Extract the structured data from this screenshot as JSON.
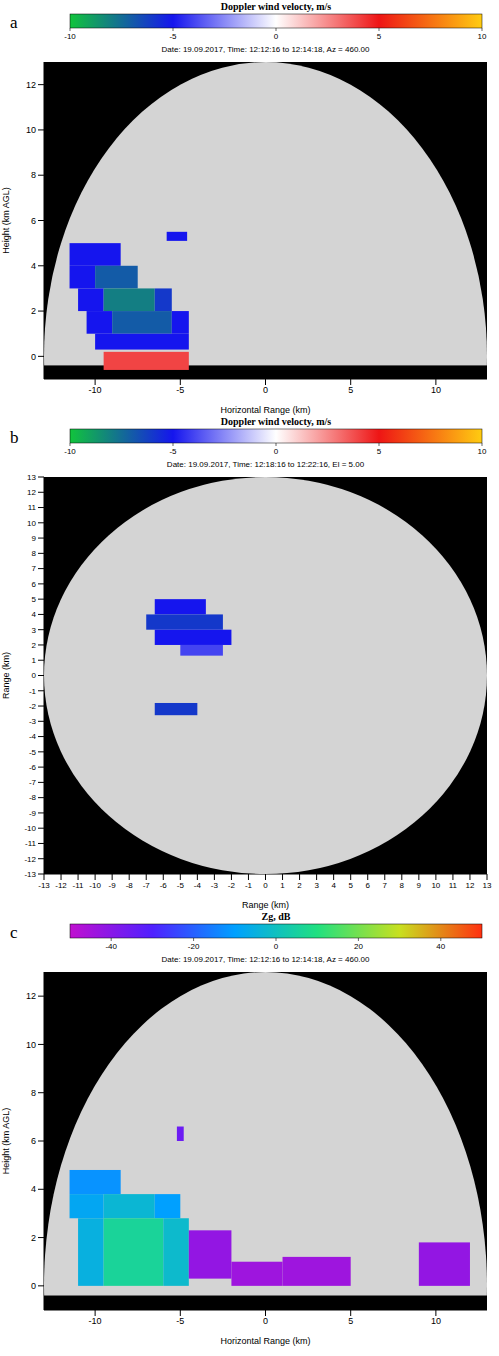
{
  "chart_data": [
    {
      "panel": "a",
      "type": "rhi",
      "title": "Date: 19.09.2017, Time: 12:12:16 to 12:14:18, Az = 460.00",
      "colorbar": {
        "title": "Doppler wind velocty, m/s",
        "range": [
          -10,
          10
        ],
        "ticks": [
          -10,
          -5,
          0,
          5,
          10
        ],
        "colors": [
          "#11c43c",
          "#1515ee",
          "#ffffff",
          "#ee1515",
          "#ffcc11"
        ]
      },
      "x_label": "Horizontal Range (km)",
      "y_label": "Height (km AGL)",
      "xlim": [
        -13,
        13
      ],
      "ylim": [
        -1,
        13
      ],
      "xticks": [
        -10,
        -5,
        0,
        5,
        10
      ],
      "yticks": [
        0,
        2,
        4,
        6,
        8,
        10,
        12
      ],
      "range_ring": {
        "center": [
          0,
          0
        ],
        "radius": 13
      },
      "terrain_top": -0.4,
      "cells": [
        {
          "x0": -11.5,
          "x1": -8.5,
          "y0": 4.0,
          "y1": 5.0,
          "value": -5
        },
        {
          "x0": -5.8,
          "x1": -4.6,
          "y0": 5.1,
          "y1": 5.5,
          "value": -5
        },
        {
          "x0": -11.5,
          "x1": -10.0,
          "y0": 3.0,
          "y1": 4.0,
          "value": -5
        },
        {
          "x0": -10.0,
          "x1": -7.5,
          "y0": 3.0,
          "y1": 4.0,
          "value": -7
        },
        {
          "x0": -11.0,
          "x1": -9.5,
          "y0": 2.0,
          "y1": 3.0,
          "value": -5
        },
        {
          "x0": -9.5,
          "x1": -6.5,
          "y0": 2.0,
          "y1": 3.0,
          "value": -8
        },
        {
          "x0": -6.5,
          "x1": -5.5,
          "y0": 2.0,
          "y1": 3.0,
          "value": -6
        },
        {
          "x0": -10.5,
          "x1": -9.0,
          "y0": 1.0,
          "y1": 2.0,
          "value": -5
        },
        {
          "x0": -9.0,
          "x1": -5.5,
          "y0": 1.0,
          "y1": 2.0,
          "value": -7
        },
        {
          "x0": -5.5,
          "x1": -4.5,
          "y0": 1.0,
          "y1": 2.0,
          "value": -5
        },
        {
          "x0": -10.0,
          "x1": -4.5,
          "y0": 0.3,
          "y1": 1.0,
          "value": -5
        },
        {
          "x0": -9.5,
          "x1": -4.5,
          "y0": -0.6,
          "y1": 0.2,
          "value": 4
        }
      ]
    },
    {
      "panel": "b",
      "type": "ppi",
      "title": "Date: 19.09.2017, Time: 12:18:16 to 12:22:16, El =  5.00",
      "colorbar": {
        "title": "Doppler wind velocty, m/s",
        "range": [
          -10,
          10
        ],
        "ticks": [
          -10,
          -5,
          0,
          5,
          10
        ],
        "colors": [
          "#11c43c",
          "#1515ee",
          "#ffffff",
          "#ee1515",
          "#ffcc11"
        ]
      },
      "x_label": "Range (km)",
      "y_label": "Range (km)",
      "xlim": [
        -13,
        13
      ],
      "ylim": [
        -13,
        13
      ],
      "xticks": [
        -13,
        -12,
        -11,
        -10,
        -9,
        -8,
        -7,
        -6,
        -5,
        -4,
        -3,
        -2,
        -1,
        0,
        1,
        2,
        3,
        4,
        5,
        6,
        7,
        8,
        9,
        10,
        11,
        12,
        13
      ],
      "yticks": [
        -13,
        -12,
        -11,
        -10,
        -9,
        -8,
        -7,
        -6,
        -5,
        -4,
        -3,
        -2,
        -1,
        0,
        1,
        2,
        3,
        4,
        5,
        6,
        7,
        8,
        9,
        10,
        11,
        12,
        13
      ],
      "range_ring": {
        "center": [
          0,
          0
        ],
        "radius": 13
      },
      "cells": [
        {
          "x0": -6.5,
          "x1": -3.5,
          "y0": 4.0,
          "y1": 5.0,
          "value": -5
        },
        {
          "x0": -7.0,
          "x1": -2.5,
          "y0": 3.0,
          "y1": 4.0,
          "value": -6
        },
        {
          "x0": -6.5,
          "x1": -2.0,
          "y0": 2.0,
          "y1": 3.0,
          "value": -5
        },
        {
          "x0": -5.0,
          "x1": -2.5,
          "y0": 1.3,
          "y1": 2.0,
          "value": -4
        },
        {
          "x0": -6.5,
          "x1": -4.0,
          "y0": -2.6,
          "y1": -1.8,
          "value": -6
        }
      ]
    },
    {
      "panel": "c",
      "type": "rhi",
      "title": "Date: 19.09.2017, Time: 12:12:16 to 12:14:18, Az = 460.00",
      "colorbar": {
        "title": "Zg, dB",
        "range": [
          -50,
          50
        ],
        "ticks": [
          -40,
          -20,
          0,
          20,
          40
        ],
        "colors": [
          "#c010d0",
          "#5020ff",
          "#00a0ff",
          "#20e080",
          "#c8e020",
          "#ff3010"
        ]
      },
      "x_label": "Horizontal Range (km)",
      "y_label": "Height (km AGL)",
      "xlim": [
        -13,
        13
      ],
      "ylim": [
        -1,
        13
      ],
      "xticks": [
        -10,
        -5,
        0,
        5,
        10
      ],
      "yticks": [
        0,
        2,
        4,
        6,
        8,
        10,
        12
      ],
      "range_ring": {
        "center": [
          0,
          0
        ],
        "radius": 13
      },
      "terrain_top": -0.4,
      "cells": [
        {
          "x0": -11.5,
          "x1": -8.5,
          "y0": 3.8,
          "y1": 4.8,
          "value": -12
        },
        {
          "x0": -11.5,
          "x1": -9.5,
          "y0": 2.8,
          "y1": 3.8,
          "value": -8
        },
        {
          "x0": -9.5,
          "x1": -6.5,
          "y0": 2.8,
          "y1": 3.8,
          "value": -3
        },
        {
          "x0": -6.5,
          "x1": -5.0,
          "y0": 2.8,
          "y1": 3.8,
          "value": -10
        },
        {
          "x0": -11.0,
          "x1": -9.5,
          "y0": 0.0,
          "y1": 2.8,
          "value": -5
        },
        {
          "x0": -9.5,
          "x1": -6.0,
          "y0": 0.0,
          "y1": 2.8,
          "value": 6
        },
        {
          "x0": -6.0,
          "x1": -4.5,
          "y0": 0.0,
          "y1": 2.8,
          "value": -2
        },
        {
          "x0": -5.2,
          "x1": -4.8,
          "y0": 6.0,
          "y1": 6.6,
          "value": -35
        },
        {
          "x0": -4.5,
          "x1": -2.0,
          "y0": 0.3,
          "y1": 2.3,
          "value": -42
        },
        {
          "x0": -2.0,
          "x1": 1.0,
          "y0": 0.0,
          "y1": 1.0,
          "value": -44
        },
        {
          "x0": 1.0,
          "x1": 5.0,
          "y0": 0.0,
          "y1": 1.2,
          "value": -44
        },
        {
          "x0": 9.0,
          "x1": 12.0,
          "y0": 0.0,
          "y1": 1.8,
          "value": -42
        }
      ]
    }
  ]
}
